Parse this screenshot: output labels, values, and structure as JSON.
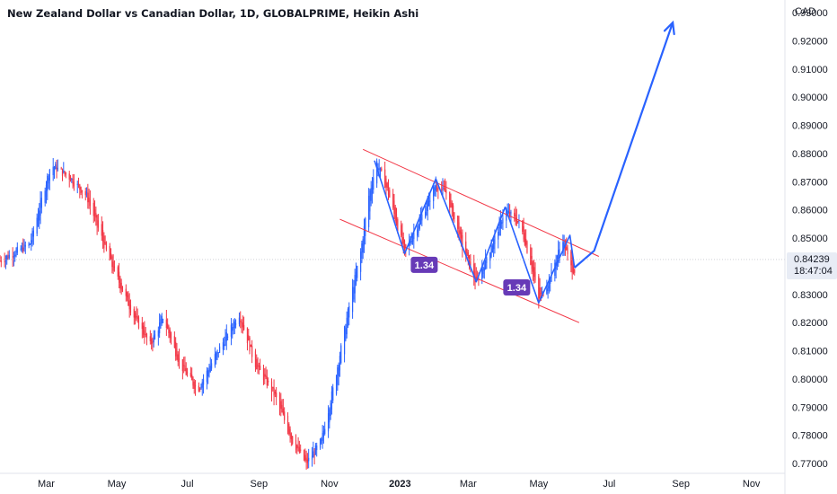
{
  "header": {
    "title": "New Zealand Dollar vs Canadian Dollar, 1D, GLOBALPRIME, Heikin Ashi"
  },
  "price_axis": {
    "unit": "CAD",
    "last_price": "0.84239",
    "countdown": "18:47:04"
  },
  "annotations": {
    "ratio_label_1": "1.34",
    "ratio_label_2": "1.34"
  },
  "colors": {
    "up": "#2962ff",
    "down": "#f23645",
    "channel": "#f23645",
    "drawing": "#2962ff",
    "ratio_badge": "#673ab7"
  },
  "chart_data": {
    "type": "heikin-ashi-candlestick",
    "symbol": "NZDCAD",
    "timeframe": "1D",
    "x_ticks": [
      "Mar",
      "May",
      "Jul",
      "Sep",
      "Nov",
      "2023",
      "Mar",
      "May",
      "Jul",
      "Sep",
      "Nov"
    ],
    "y_ticks": [
      "0.77000",
      "0.78000",
      "0.79000",
      "0.80000",
      "0.81000",
      "0.82000",
      "0.83000",
      "0.84000",
      "0.85000",
      "0.86000",
      "0.87000",
      "0.88000",
      "0.89000",
      "0.90000",
      "0.91000",
      "0.92000",
      "0.93000"
    ],
    "ylim": [
      0.7665,
      0.9345
    ],
    "xlim": [
      "2022-01-20",
      "2023-11-30"
    ],
    "trend_path": [
      [
        "2022-01-20",
        0.842
      ],
      [
        "2022-02-15",
        0.848
      ],
      [
        "2022-03-05",
        0.876
      ],
      [
        "2022-03-20",
        0.872
      ],
      [
        "2022-04-05",
        0.865
      ],
      [
        "2022-04-25",
        0.842
      ],
      [
        "2022-05-15",
        0.823
      ],
      [
        "2022-05-30",
        0.812
      ],
      [
        "2022-06-10",
        0.822
      ],
      [
        "2022-06-25",
        0.805
      ],
      [
        "2022-07-10",
        0.796
      ],
      [
        "2022-07-25",
        0.808
      ],
      [
        "2022-08-15",
        0.823
      ],
      [
        "2022-08-28",
        0.806
      ],
      [
        "2022-09-15",
        0.794
      ],
      [
        "2022-09-30",
        0.778
      ],
      [
        "2022-10-12",
        0.77
      ],
      [
        "2022-10-25",
        0.778
      ],
      [
        "2022-11-05",
        0.798
      ],
      [
        "2022-11-20",
        0.83
      ],
      [
        "2022-11-28",
        0.845
      ],
      [
        "2022-12-05",
        0.865
      ],
      [
        "2022-12-12",
        0.877
      ],
      [
        "2022-12-22",
        0.866
      ],
      [
        "2023-01-05",
        0.845
      ],
      [
        "2023-01-20",
        0.858
      ],
      [
        "2023-02-01",
        0.869
      ],
      [
        "2023-02-10",
        0.866
      ],
      [
        "2023-02-25",
        0.846
      ],
      [
        "2023-03-08",
        0.834
      ],
      [
        "2023-03-22",
        0.848
      ],
      [
        "2023-04-02",
        0.86
      ],
      [
        "2023-04-15",
        0.855
      ],
      [
        "2023-04-25",
        0.84
      ],
      [
        "2023-05-01",
        0.828
      ],
      [
        "2023-05-10",
        0.835
      ],
      [
        "2023-05-22",
        0.85
      ],
      [
        "2023-05-28",
        0.84
      ],
      [
        "2023-06-01",
        0.8385
      ]
    ],
    "channel_upper": [
      [
        "2022-11-30",
        0.8815
      ],
      [
        "2023-06-22",
        0.8435
      ]
    ],
    "channel_lower": [
      [
        "2022-11-10",
        0.8567
      ],
      [
        "2023-06-05",
        0.82
      ]
    ],
    "zigzag": [
      [
        "2022-12-10",
        0.8775
      ],
      [
        "2023-01-05",
        0.8445
      ],
      [
        "2023-02-01",
        0.871
      ],
      [
        "2023-03-08",
        0.8345
      ],
      [
        "2023-04-02",
        0.861
      ],
      [
        "2023-05-01",
        0.827
      ],
      [
        "2023-05-28",
        0.851
      ],
      [
        "2023-06-01",
        0.8395
      ]
    ],
    "projection": [
      [
        "2023-06-01",
        0.8395
      ],
      [
        "2023-06-18",
        0.8455
      ],
      [
        "2023-08-25",
        0.9265
      ]
    ],
    "ratio_labels": [
      {
        "text": "1.34",
        "date": "2023-01-22",
        "price": 0.8405
      },
      {
        "text": "1.34",
        "date": "2023-04-12",
        "price": 0.8325
      }
    ]
  }
}
